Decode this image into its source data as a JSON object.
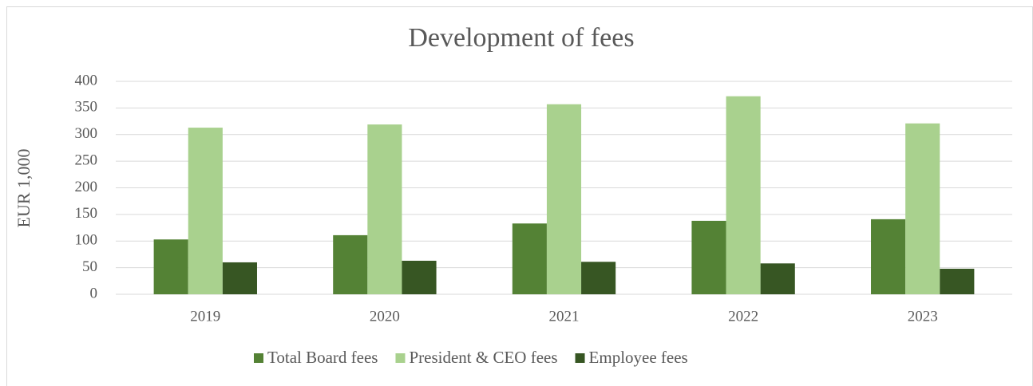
{
  "chart_data": {
    "type": "bar",
    "title": "Development of fees",
    "y_label": "EUR 1,000",
    "categories": [
      "2019",
      "2020",
      "2021",
      "2022",
      "2023"
    ],
    "series": [
      {
        "name": "Total Board fees",
        "color": "#548235",
        "values": [
          103,
          111,
          133,
          138,
          141
        ]
      },
      {
        "name": "President & CEO fees",
        "color": "#a9d18e",
        "values": [
          313,
          319,
          357,
          372,
          321
        ]
      },
      {
        "name": "Employee fees",
        "color": "#375623",
        "values": [
          60,
          63,
          61,
          58,
          48
        ]
      }
    ],
    "ylim": [
      0,
      400
    ],
    "yticks": [
      0,
      50,
      100,
      150,
      200,
      250,
      300,
      350,
      400
    ],
    "grid": true,
    "legend": "bottom"
  }
}
